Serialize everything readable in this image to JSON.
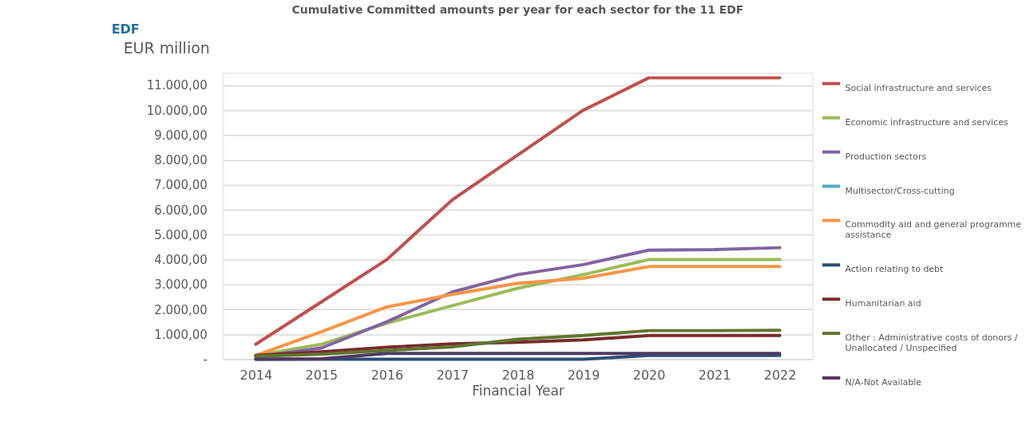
{
  "chart_data": {
    "type": "line",
    "title": "Cumulative Committed amounts per year for each sector for the 11 EDF",
    "ylabel": "EUR million",
    "xlabel": "Financial Year",
    "annotations": [
      "EDF"
    ],
    "categories": [
      "2014",
      "2015",
      "2016",
      "2017",
      "2018",
      "2019",
      "2020",
      "2021",
      "2022"
    ],
    "series": [
      {
        "name": "Social infrastructure and services",
        "color": "#c0504d",
        "values": [
          600,
          2300,
          4000,
          6400,
          8200,
          10000,
          11300,
          11300,
          11300
        ]
      },
      {
        "name": "Economic infrastructure and services",
        "color": "#9bbb59",
        "values": [
          150,
          600,
          1450,
          2150,
          2850,
          3400,
          4000,
          4000,
          4000
        ]
      },
      {
        "name": "Production sectors",
        "color": "#8064a2",
        "values": [
          100,
          450,
          1500,
          2700,
          3400,
          3800,
          4380,
          4400,
          4480
        ]
      },
      {
        "name": "Multisector/Cross-cutting",
        "color": "#4bacc6",
        "values": [
          null,
          null,
          null,
          null,
          null,
          null,
          null,
          null,
          null
        ]
      },
      {
        "name": "Commodity aid and general programme assistance",
        "color": "#f79646",
        "values": [
          150,
          1100,
          2100,
          2600,
          3050,
          3250,
          3720,
          3720,
          3720
        ]
      },
      {
        "name": "Action relating to debt",
        "color": "#2c4d75",
        "values": [
          0,
          0,
          0,
          0,
          0,
          0,
          150,
          150,
          150
        ]
      },
      {
        "name": "Humanitarian aid",
        "color": "#772c2a",
        "values": [
          150,
          300,
          480,
          620,
          680,
          780,
          950,
          950,
          950
        ]
      },
      {
        "name": "Other : Administrative costs of donors / Unallocated / Unspecified",
        "color": "#5f7530",
        "values": [
          120,
          200,
          350,
          500,
          800,
          950,
          1150,
          1150,
          1160
        ]
      },
      {
        "name": "N/A-Not Available",
        "color": "#4d3b62",
        "values": [
          0,
          20,
          230,
          230,
          230,
          230,
          230,
          230,
          230
        ]
      }
    ],
    "ylim": [
      0,
      11500
    ],
    "yticks": [
      {
        "value": 0,
        "label": "-"
      },
      {
        "value": 1000,
        "label": "1.000,00"
      },
      {
        "value": 2000,
        "label": "2.000,00"
      },
      {
        "value": 3000,
        "label": "3.000,00"
      },
      {
        "value": 4000,
        "label": "4.000,00"
      },
      {
        "value": 5000,
        "label": "5.000,00"
      },
      {
        "value": 6000,
        "label": "6.000,00"
      },
      {
        "value": 7000,
        "label": "7.000,00"
      },
      {
        "value": 8000,
        "label": "8.000,00"
      },
      {
        "value": 9000,
        "label": "9.000,00"
      },
      {
        "value": 10000,
        "label": "10.000,00"
      },
      {
        "value": 11000,
        "label": "11.000,00"
      }
    ],
    "grid": "y",
    "legend": "right",
    "marker": "none",
    "line_style": "solid"
  }
}
